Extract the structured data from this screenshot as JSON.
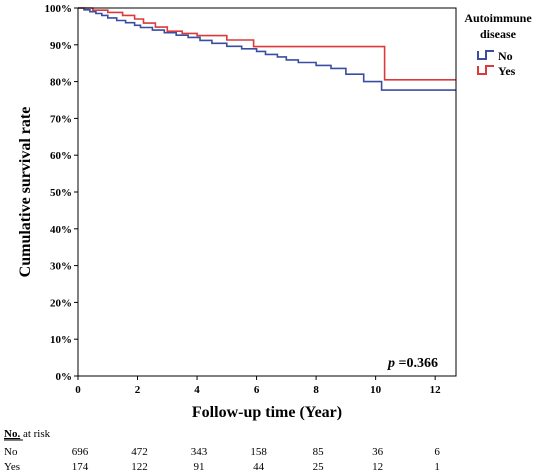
{
  "chart_data": {
    "type": "line",
    "subtype": "kaplan-meier step",
    "title": "",
    "xlabel": "Follow-up time (Year)",
    "ylabel": "Cumulative survival rate",
    "xlim": [
      0,
      12.7
    ],
    "ylim": [
      0,
      100
    ],
    "x_ticks": [
      0,
      2,
      4,
      6,
      8,
      10,
      12
    ],
    "y_ticks": [
      0,
      10,
      20,
      30,
      40,
      50,
      60,
      70,
      80,
      90,
      100
    ],
    "y_tick_labels": [
      "0%",
      "10%",
      "20%",
      "30%",
      "40%",
      "50%",
      "60%",
      "70%",
      "80%",
      "90%",
      "100%"
    ],
    "grid": false,
    "legend": {
      "title_lines": [
        "Autoimmune",
        "disease"
      ],
      "placement": "top-right, outside plot"
    },
    "annotation": {
      "italic": "p",
      "rest": " =0.366"
    },
    "series": [
      {
        "name": "No",
        "color": "#3a4ea0",
        "x": [
          0,
          0.2,
          0.4,
          0.6,
          0.8,
          1.0,
          1.3,
          1.6,
          1.9,
          2.1,
          2.5,
          2.9,
          3.3,
          3.7,
          4.1,
          4.5,
          5.0,
          5.5,
          6.0,
          6.3,
          6.7,
          7.0,
          7.4,
          8.0,
          8.5,
          9.0,
          9.6,
          10.2,
          12.7
        ],
        "y": [
          100,
          99.5,
          99.0,
          98.5,
          98.0,
          97.3,
          96.6,
          96.0,
          95.3,
          94.7,
          94.0,
          93.3,
          92.6,
          92.0,
          91.2,
          90.4,
          89.6,
          88.9,
          88.2,
          87.4,
          86.7,
          85.9,
          85.2,
          84.4,
          83.6,
          82.0,
          80.0,
          77.7,
          77.7
        ]
      },
      {
        "name": "Yes",
        "color": "#d93a3a",
        "x": [
          0,
          0.5,
          1.0,
          1.5,
          1.9,
          2.2,
          2.6,
          3.0,
          3.5,
          4.0,
          5.0,
          5.9,
          10.3,
          12.7
        ],
        "y": [
          100,
          99.4,
          98.8,
          98.0,
          97.0,
          95.9,
          94.8,
          93.7,
          93.1,
          92.5,
          91.3,
          89.5,
          80.5,
          80.5
        ]
      }
    ],
    "risk_table": {
      "header_underlined": "No.",
      "header_rest": " at risk",
      "rows": [
        {
          "label": "No",
          "values": [
            "696",
            "472",
            "343",
            "158",
            "85",
            "36",
            "6"
          ]
        },
        {
          "label": "Yes",
          "values": [
            "174",
            "122",
            "91",
            "44",
            "25",
            "12",
            "1"
          ]
        }
      ]
    }
  }
}
